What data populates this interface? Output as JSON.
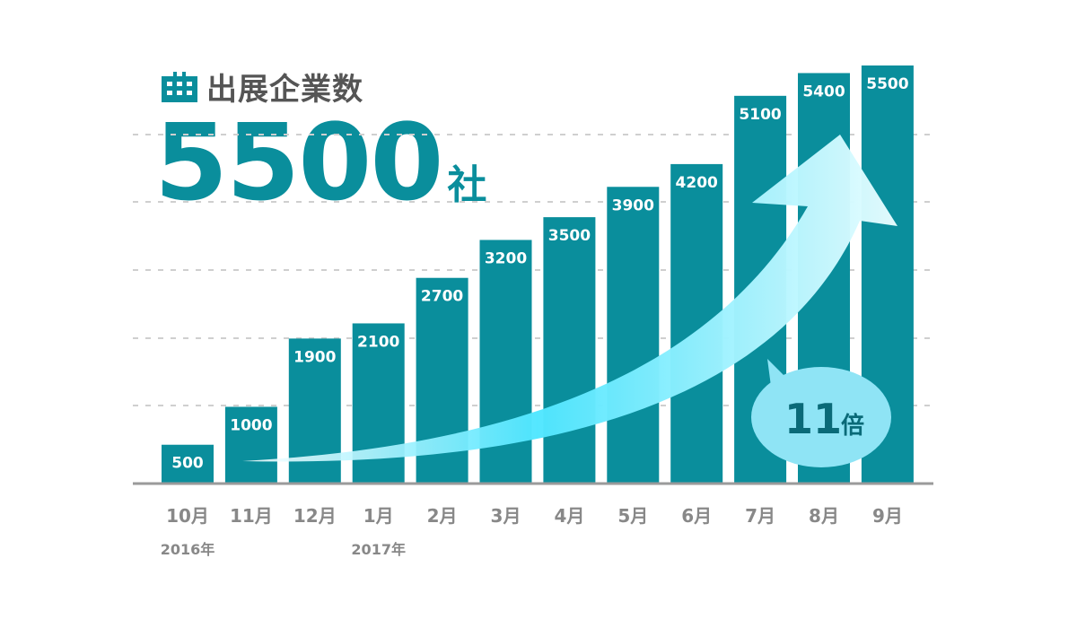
{
  "header": {
    "title": "出展企業数",
    "icon": "building-icon",
    "total_value": "5500",
    "total_unit": "社"
  },
  "colors": {
    "bar": "#0a8e9c",
    "accent_text": "#0a8e9c",
    "title_text": "#555555",
    "axis_text": "#888888",
    "arrow_light": "#5ee8ff",
    "bubble": "#8fe4f5"
  },
  "chart_data": {
    "type": "bar",
    "title": "出展企業数",
    "categories": [
      "10月",
      "11月",
      "12月",
      "1月",
      "2月",
      "3月",
      "4月",
      "5月",
      "6月",
      "7月",
      "8月",
      "9月"
    ],
    "values": [
      500,
      1000,
      1900,
      2100,
      2700,
      3200,
      3500,
      3900,
      4200,
      5100,
      5400,
      5500
    ],
    "year_labels": [
      {
        "category": "10月",
        "label": "2016年"
      },
      {
        "category": "1月",
        "label": "2017年"
      }
    ],
    "ylim": [
      0,
      5500
    ],
    "grid": true,
    "annotation": {
      "text": "11",
      "unit": "倍"
    }
  }
}
